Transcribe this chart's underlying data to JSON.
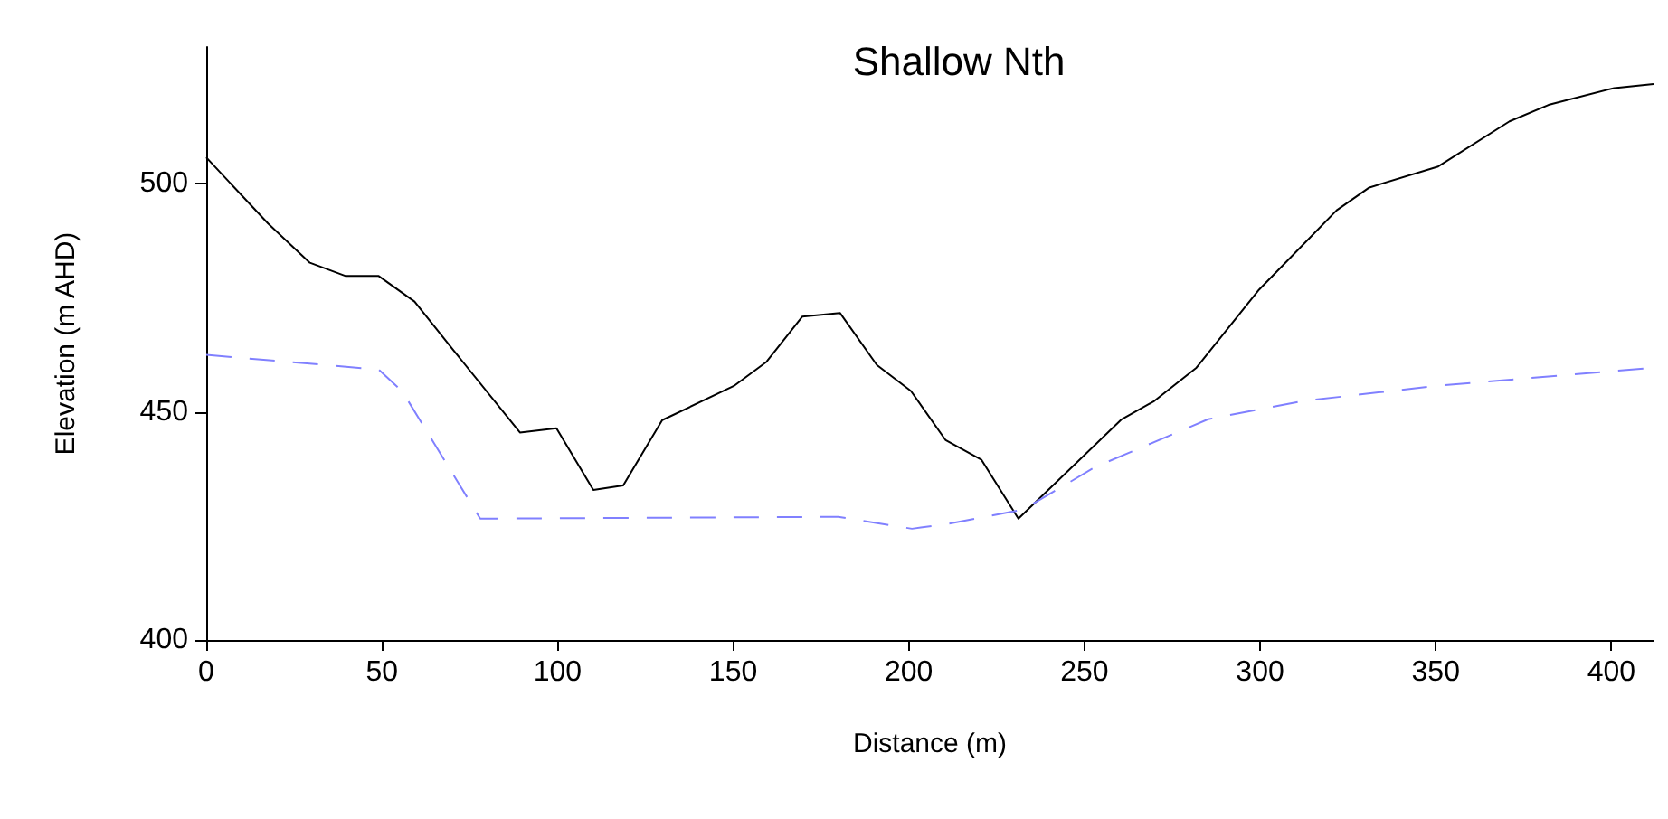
{
  "chart_data": {
    "type": "line",
    "title": "Shallow Nth",
    "xlabel": "Distance (m)",
    "ylabel": "Elevation (m AHD)",
    "xlim": [
      0,
      412
    ],
    "xticks": [
      0,
      50,
      100,
      150,
      200,
      250,
      300,
      350,
      400
    ],
    "ylim": [
      400,
      530
    ],
    "yticks": [
      400,
      450,
      500
    ],
    "grid": false,
    "marker": "none",
    "series": [
      {
        "color": "#000000",
        "line_style": "solid",
        "x": [
          0,
          17.6,
          29.5,
          39.7,
          49.1,
          59.3,
          70.3,
          89.3,
          99.7,
          110.2,
          118.7,
          129.8,
          150.2,
          159.5,
          169.7,
          180.4,
          190.9,
          200.6,
          210.5,
          220.7,
          231.2,
          260.6,
          269.9,
          281.9,
          299.7,
          321.8,
          331.1,
          350.7,
          371,
          382.1,
          400.8,
          412
        ],
        "values": [
          505.8,
          491.3,
          482.7,
          479.8,
          479.8,
          474.2,
          463.6,
          445.5,
          446.4,
          432.9,
          433.9,
          448.2,
          455.7,
          461,
          470.9,
          471.7,
          460.3,
          454.6,
          443.8,
          439.5,
          426.6,
          448.4,
          452.4,
          459.7,
          476.8,
          494.2,
          499.2,
          503.8,
          513.7,
          517.3,
          521,
          521.9
        ]
      },
      {
        "color": "#8080ff",
        "line_style": "dashed",
        "x": [
          0,
          49.1,
          55.9,
          78,
          179.9,
          200.9,
          212.2,
          232.6,
          253,
          285.2,
          312.4,
          349.8,
          412
        ],
        "values": [
          462.5,
          459.3,
          454.4,
          426.6,
          427,
          424.4,
          425.6,
          428.6,
          437.9,
          448.4,
          452.4,
          455.7,
          459.7
        ]
      }
    ]
  }
}
